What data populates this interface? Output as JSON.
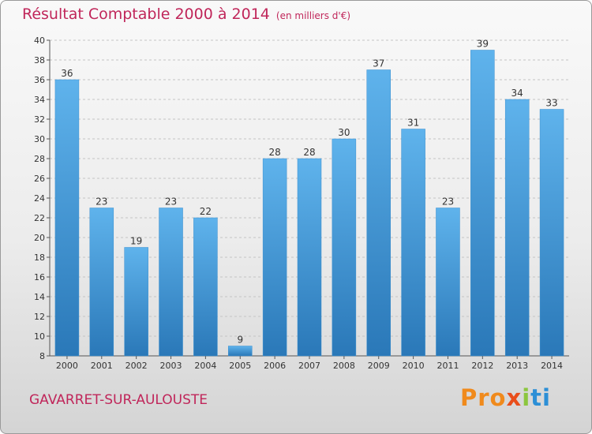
{
  "chart_data": {
    "type": "bar",
    "title": "Résultat Comptable 2000 à 2014",
    "subtitle": "(en milliers d'€)",
    "categories": [
      "2000",
      "2001",
      "2002",
      "2003",
      "2004",
      "2005",
      "2006",
      "2007",
      "2008",
      "2009",
      "2010",
      "2011",
      "2012",
      "2013",
      "2014"
    ],
    "values": [
      36,
      23,
      19,
      23,
      22,
      9,
      28,
      28,
      30,
      37,
      31,
      23,
      39,
      34,
      33
    ],
    "ylim": [
      8,
      40
    ],
    "yticks": [
      8,
      10,
      12,
      14,
      16,
      18,
      20,
      22,
      24,
      26,
      28,
      30,
      32,
      34,
      36,
      38,
      40
    ],
    "grid": true,
    "bar_color": "#4aa3e0",
    "xlabel": "",
    "ylabel": ""
  },
  "footer": {
    "place": "GAVARRET-SUR-AULOUSTE",
    "brand_parts": [
      "Pro",
      "x",
      "i",
      "ti"
    ]
  },
  "colors": {
    "accent": "#c0265a",
    "bar": "#4aa3e0"
  }
}
